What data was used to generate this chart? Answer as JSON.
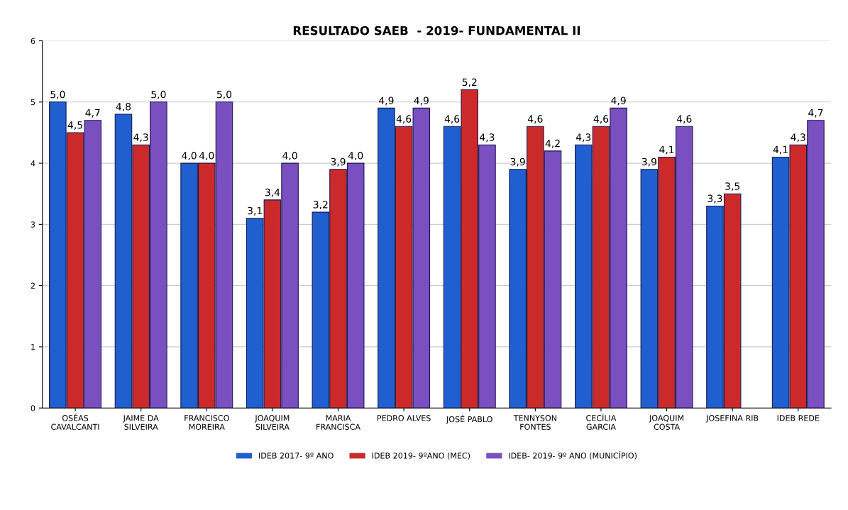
{
  "chart_data": {
    "type": "bar",
    "title": "RESULTADO SAEB  - 2019- FUNDAMENTAL II",
    "categories": [
      "OSÉAS\nCAVALCANTI",
      "JAIME DA\nSILVEIRA",
      "FRANCISCO\nMOREIRA",
      "JOAQUIM\nSILVEIRA",
      "MARIA\nFRANCISCA",
      "PEDRO ALVES",
      "JOSÉ PABLO",
      "TENNYSON\nFONTES",
      "CECÍLIA\nGARCIA",
      "JOAQUIM\nCOSTA",
      "JOSEFINA RIB",
      "IDEB REDE"
    ],
    "series": [
      {
        "name": "IDEB 2017- 9º ANO",
        "color": "#1f5fd0",
        "values": [
          5.0,
          4.8,
          4.0,
          3.1,
          3.2,
          4.9,
          4.6,
          3.9,
          4.3,
          3.9,
          3.3,
          4.1
        ],
        "value_labels": [
          "5,0",
          "4,8",
          "4,0",
          "3,1",
          "3,2",
          "4,9",
          "4,6",
          "3,9",
          "4,3",
          "3,9",
          "3,3",
          "4,1"
        ]
      },
      {
        "name": "IDEB 2019- 9ºANO (MEC)",
        "color": "#cc2a2a",
        "values": [
          4.5,
          4.3,
          4.0,
          3.4,
          3.9,
          4.6,
          5.2,
          4.6,
          4.6,
          4.1,
          3.5,
          4.3
        ],
        "value_labels": [
          "4,5",
          "4,3",
          "4,0",
          "3,4",
          "3,9",
          "4,6",
          "5,2",
          "4,6",
          "4,6",
          "4,1",
          "3,5",
          "4,3"
        ]
      },
      {
        "name": "IDEB- 2019- 9º ANO (MUNICÍPIO)",
        "color": "#7a4fc0",
        "values": [
          4.7,
          5.0,
          5.0,
          4.0,
          4.0,
          4.9,
          4.3,
          4.2,
          4.9,
          4.6,
          null,
          4.7
        ],
        "value_labels": [
          "4,7",
          "5,0",
          "5,0",
          "4,0",
          "4,0",
          "4,9",
          "4,3",
          "4,2",
          "4,9",
          "4,6",
          null,
          "4,7"
        ]
      }
    ],
    "ylim": [
      0,
      6
    ],
    "yticks": [
      0,
      1,
      2,
      3,
      4,
      5,
      6
    ],
    "grid": "y",
    "legend": "bottom"
  }
}
